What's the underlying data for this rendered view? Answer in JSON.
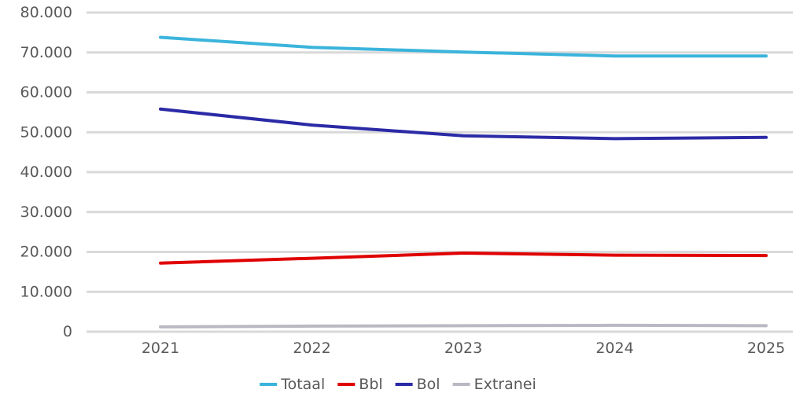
{
  "chart_data": {
    "type": "line",
    "categories": [
      "2021",
      "2022",
      "2023",
      "2024",
      "2025"
    ],
    "ylim": [
      0,
      80000
    ],
    "y_ticks": [
      0,
      10000,
      20000,
      30000,
      40000,
      50000,
      60000,
      70000,
      80000
    ],
    "y_tick_labels": [
      "0",
      "10.000",
      "20.000",
      "30.000",
      "40.000",
      "50.000",
      "60.000",
      "70.000",
      "80.000"
    ],
    "grid": true,
    "legend_position": "bottom",
    "series": [
      {
        "name": "Totaal",
        "color": "#3bb4dc",
        "values": [
          73800,
          71300,
          70100,
          69100,
          69100
        ]
      },
      {
        "name": "Bbl",
        "color": "#e00000",
        "values": [
          17200,
          18400,
          19700,
          19200,
          19100
        ]
      },
      {
        "name": "Bol",
        "color": "#2b2aa6",
        "values": [
          55800,
          51800,
          49100,
          48400,
          48700
        ]
      },
      {
        "name": "Extranei",
        "color": "#b9b9c4",
        "values": [
          1200,
          1400,
          1500,
          1600,
          1500
        ]
      }
    ]
  }
}
